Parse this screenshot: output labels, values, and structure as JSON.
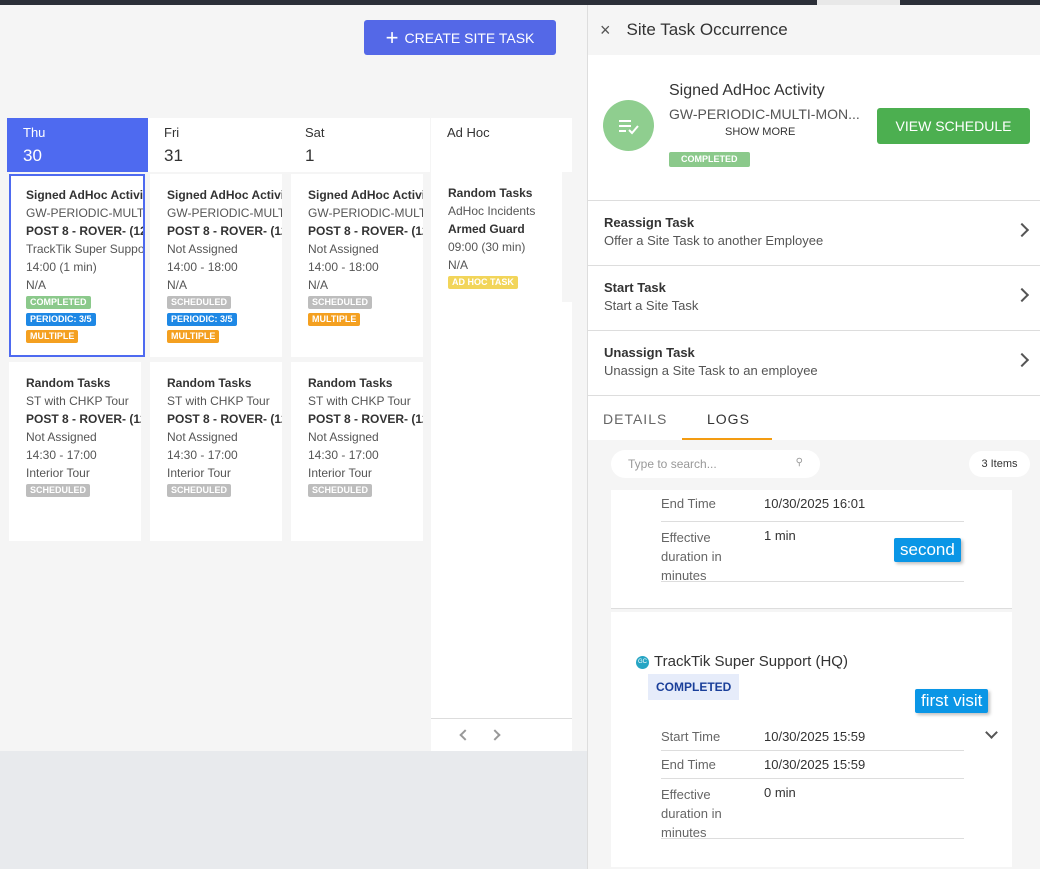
{
  "calendar": {
    "create_button": "CREATE SITE TASK",
    "days": [
      {
        "weekday": "Thu",
        "day": "30"
      },
      {
        "weekday": "Fri",
        "day": "31"
      },
      {
        "weekday": "Sat",
        "day": "1"
      },
      {
        "weekday": "Ad Hoc"
      }
    ],
    "columns": [
      [
        {
          "lines": [
            "Signed AdHoc Activit",
            "GW-PERIODIC-MULTI-",
            "POST 8 - ROVER- (12",
            "TrackTik Super Suppo",
            "14:00 (1 min)",
            "N/A"
          ],
          "badges": [
            {
              "text": "COMPLETED",
              "color": "#8bc98b"
            },
            {
              "text": "PERIODIC: 3/5",
              "color": "#1e88e5"
            },
            {
              "text": "MULTIPLE",
              "color": "#f4a020"
            }
          ]
        },
        {
          "lines": [
            "Random Tasks",
            "ST with CHKP Tour",
            "POST 8 - ROVER- (12",
            "Not Assigned",
            "14:30 - 17:00",
            "Interior Tour"
          ],
          "badges": [
            {
              "text": "SCHEDULED",
              "color": "#bdbdbd"
            }
          ]
        }
      ],
      [
        {
          "lines": [
            "Signed AdHoc Activit",
            "GW-PERIODIC-MULTI-I",
            "POST 8 - ROVER- (12",
            "Not Assigned",
            "14:00 - 18:00",
            "N/A"
          ],
          "badges": [
            {
              "text": "SCHEDULED",
              "color": "#bdbdbd"
            },
            {
              "text": "PERIODIC: 3/5",
              "color": "#1e88e5"
            },
            {
              "text": "MULTIPLE",
              "color": "#f4a020"
            }
          ]
        },
        {
          "lines": [
            "Random Tasks",
            "ST with CHKP Tour",
            "POST 8 - ROVER- (12",
            "Not Assigned",
            "14:30 - 17:00",
            "Interior Tour"
          ],
          "badges": [
            {
              "text": "SCHEDULED",
              "color": "#bdbdbd"
            }
          ]
        }
      ],
      [
        {
          "lines": [
            "Signed AdHoc Activit",
            "GW-PERIODIC-MULTI-I",
            "POST 8 - ROVER- (12",
            "Not Assigned",
            "14:00 - 18:00",
            "N/A"
          ],
          "badges": [
            {
              "text": "SCHEDULED",
              "color": "#bdbdbd"
            },
            {
              "text": "MULTIPLE",
              "color": "#f4a020"
            }
          ]
        },
        {
          "lines": [
            "Random Tasks",
            "ST with CHKP Tour",
            "POST 8 - ROVER- (12",
            "Not Assigned",
            "14:30 - 17:00",
            "Interior Tour"
          ],
          "badges": [
            {
              "text": "SCHEDULED",
              "color": "#bdbdbd"
            }
          ]
        }
      ],
      [
        {
          "lines": [
            "Random Tasks",
            "AdHoc Incidents",
            "Armed Guard",
            "09:00 (30 min)",
            "N/A"
          ],
          "badges": [
            {
              "text": "AD HOC TASK",
              "color": "#f2d55a"
            }
          ]
        }
      ]
    ]
  },
  "panel": {
    "title": "Site Task Occurrence",
    "task_title": "Signed AdHoc Activity",
    "task_schedule": "GW-PERIODIC-MULTI-MON...",
    "show_more": "SHOW MORE",
    "status": "COMPLETED",
    "view_schedule": "VIEW SCHEDULE",
    "actions": [
      {
        "title": "Reassign Task",
        "subtitle": "Offer a Site Task to another Employee"
      },
      {
        "title": "Start Task",
        "subtitle": "Start a Site Task"
      },
      {
        "title": "Unassign Task",
        "subtitle": "Unassign a Site Task to an employee"
      }
    ],
    "tabs": [
      "DETAILS",
      "LOGS"
    ],
    "search_placeholder": "Type to search...",
    "item_count": "3 Items",
    "log_entries": [
      {
        "tooltip": "second",
        "rows": [
          {
            "label": "End Time",
            "value": "10/30/2025 16:01"
          },
          {
            "label": "Effective duration in minutes",
            "value": "1 min"
          }
        ]
      },
      {
        "initials": "GC",
        "user": "TrackTik Super Support (HQ)",
        "status": "COMPLETED",
        "tooltip": "first visit",
        "rows": [
          {
            "label": "Start Time",
            "value": "10/30/2025 15:59"
          },
          {
            "label": "End Time",
            "value": "10/30/2025 15:59"
          },
          {
            "label": "Effective duration in minutes",
            "value": "0 min"
          }
        ]
      }
    ]
  }
}
